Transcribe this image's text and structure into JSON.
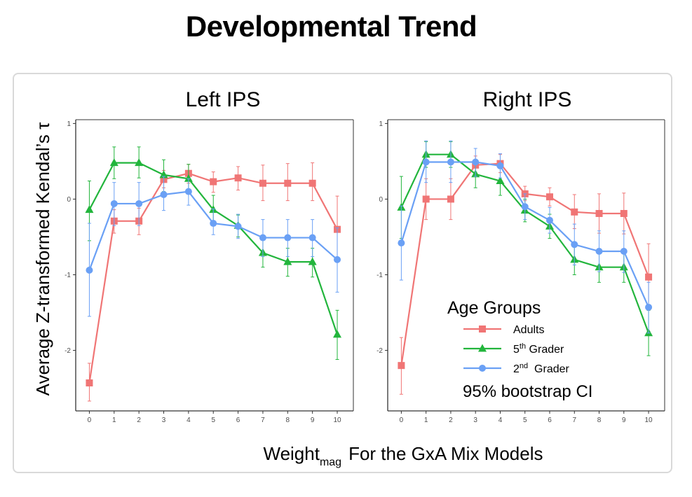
{
  "title": "Developmental Trend",
  "colors": {
    "adults": "#f07575",
    "fifth": "#22b53c",
    "second": "#6aa0f5",
    "axis": "#333333",
    "tick_label": "#4d4d4d",
    "frame": "#d9d9d9"
  },
  "shared": {
    "ylabel": "Average Z-transformed Kendal’s τ",
    "xlabel_main": "Weight",
    "xlabel_sub": "mag",
    "xlabel_rest": "For the GxA Mix Models",
    "x_ticks": [
      "0",
      "1",
      "2",
      "3",
      "4",
      "5",
      "6",
      "7",
      "8",
      "9",
      "10"
    ],
    "y_ticks": [
      "1",
      "0",
      "-1",
      "-2"
    ]
  },
  "legend": {
    "title": "Age Groups",
    "items": [
      {
        "key": "adults",
        "label": "Adults",
        "sup": "",
        "rest": "",
        "marker": "square"
      },
      {
        "key": "fifth",
        "label": "5",
        "sup": "th",
        "rest": " Grader",
        "marker": "triangle"
      },
      {
        "key": "second",
        "label": "2",
        "sup": "nd",
        "rest": "  Grader",
        "marker": "circle"
      }
    ],
    "note": "95% bootstrap CI"
  },
  "chart_data": [
    {
      "type": "line",
      "title": "Left IPS",
      "xlabel": "Weightmag For the GxA Mix Models",
      "ylabel": "Average Z-transformed Kendal’s τ",
      "x": [
        0,
        1,
        2,
        3,
        4,
        5,
        6,
        7,
        8,
        9,
        10
      ],
      "xlim": [
        -0.55,
        10.65
      ],
      "ylim": [
        -2.8,
        1.05
      ],
      "series": [
        {
          "name": "Adults",
          "key": "adults",
          "marker": "square",
          "values": [
            -2.43,
            -0.29,
            -0.29,
            0.26,
            0.34,
            0.23,
            0.28,
            0.21,
            0.21,
            0.21,
            -0.4
          ],
          "ci_low": [
            -2.67,
            -0.45,
            -0.47,
            0.15,
            0.21,
            0.09,
            0.12,
            -0.02,
            -0.02,
            -0.02,
            -0.8
          ],
          "ci_high": [
            -2.17,
            -0.14,
            -0.12,
            0.38,
            0.46,
            0.36,
            0.43,
            0.45,
            0.47,
            0.48,
            0.04
          ]
        },
        {
          "name": "5th Grader",
          "key": "fifth",
          "marker": "triangle",
          "values": [
            -0.14,
            0.48,
            0.48,
            0.32,
            0.27,
            -0.14,
            -0.35,
            -0.71,
            -0.83,
            -0.83,
            -1.79
          ],
          "ci_low": [
            -0.55,
            0.27,
            0.28,
            0.1,
            0.08,
            -0.33,
            -0.5,
            -0.9,
            -1.02,
            -1.03,
            -2.12
          ],
          "ci_high": [
            0.24,
            0.69,
            0.69,
            0.52,
            0.46,
            0.05,
            -0.21,
            -0.52,
            -0.65,
            -0.65,
            -1.47
          ]
        },
        {
          "name": "2nd Grader",
          "key": "second",
          "marker": "circle",
          "values": [
            -0.94,
            -0.06,
            -0.06,
            0.06,
            0.1,
            -0.32,
            -0.36,
            -0.51,
            -0.51,
            -0.51,
            -0.8
          ],
          "ci_low": [
            -1.55,
            -0.35,
            -0.35,
            -0.15,
            -0.08,
            -0.47,
            -0.52,
            -0.76,
            -0.76,
            -0.76,
            -1.23
          ],
          "ci_high": [
            -0.32,
            0.22,
            0.22,
            0.3,
            0.27,
            -0.13,
            -0.2,
            -0.27,
            -0.27,
            -0.27,
            -0.38
          ]
        }
      ]
    },
    {
      "type": "line",
      "title": "Right IPS",
      "xlabel": "Weightmag For the GxA Mix Models",
      "ylabel": "Average Z-transformed Kendal’s τ",
      "x": [
        0,
        1,
        2,
        3,
        4,
        5,
        6,
        7,
        8,
        9,
        10
      ],
      "xlim": [
        -0.55,
        10.65
      ],
      "ylim": [
        -2.8,
        1.05
      ],
      "series": [
        {
          "name": "Adults",
          "key": "adults",
          "marker": "square",
          "values": [
            -2.2,
            0.0,
            0.0,
            0.45,
            0.47,
            0.07,
            0.03,
            -0.17,
            -0.19,
            -0.19,
            -1.03
          ],
          "ci_low": [
            -2.58,
            -0.27,
            -0.27,
            0.33,
            0.35,
            -0.02,
            -0.09,
            -0.39,
            -0.45,
            -0.46,
            -1.47
          ],
          "ci_high": [
            -1.83,
            0.27,
            0.27,
            0.57,
            0.59,
            0.17,
            0.15,
            0.06,
            0.07,
            0.08,
            -0.59
          ]
        },
        {
          "name": "5th Grader",
          "key": "fifth",
          "marker": "triangle",
          "values": [
            -0.11,
            0.59,
            0.59,
            0.33,
            0.24,
            -0.15,
            -0.36,
            -0.8,
            -0.9,
            -0.9,
            -1.77
          ],
          "ci_low": [
            -0.52,
            0.42,
            0.42,
            0.15,
            0.05,
            -0.3,
            -0.52,
            -1.0,
            -1.1,
            -1.1,
            -2.07
          ],
          "ci_high": [
            0.3,
            0.76,
            0.76,
            0.52,
            0.43,
            0.0,
            -0.2,
            -0.6,
            -0.7,
            -0.7,
            -1.47
          ]
        },
        {
          "name": "2nd Grader",
          "key": "second",
          "marker": "circle",
          "values": [
            -0.58,
            0.49,
            0.49,
            0.49,
            0.44,
            -0.1,
            -0.28,
            -0.6,
            -0.69,
            -0.69,
            -1.43
          ],
          "ci_low": [
            -1.07,
            0.22,
            0.22,
            0.3,
            0.28,
            -0.27,
            -0.45,
            -0.87,
            -0.96,
            -0.97,
            -1.77
          ],
          "ci_high": [
            -0.09,
            0.77,
            0.77,
            0.67,
            0.6,
            0.07,
            -0.11,
            -0.33,
            -0.42,
            -0.42,
            -1.1
          ]
        }
      ]
    }
  ]
}
